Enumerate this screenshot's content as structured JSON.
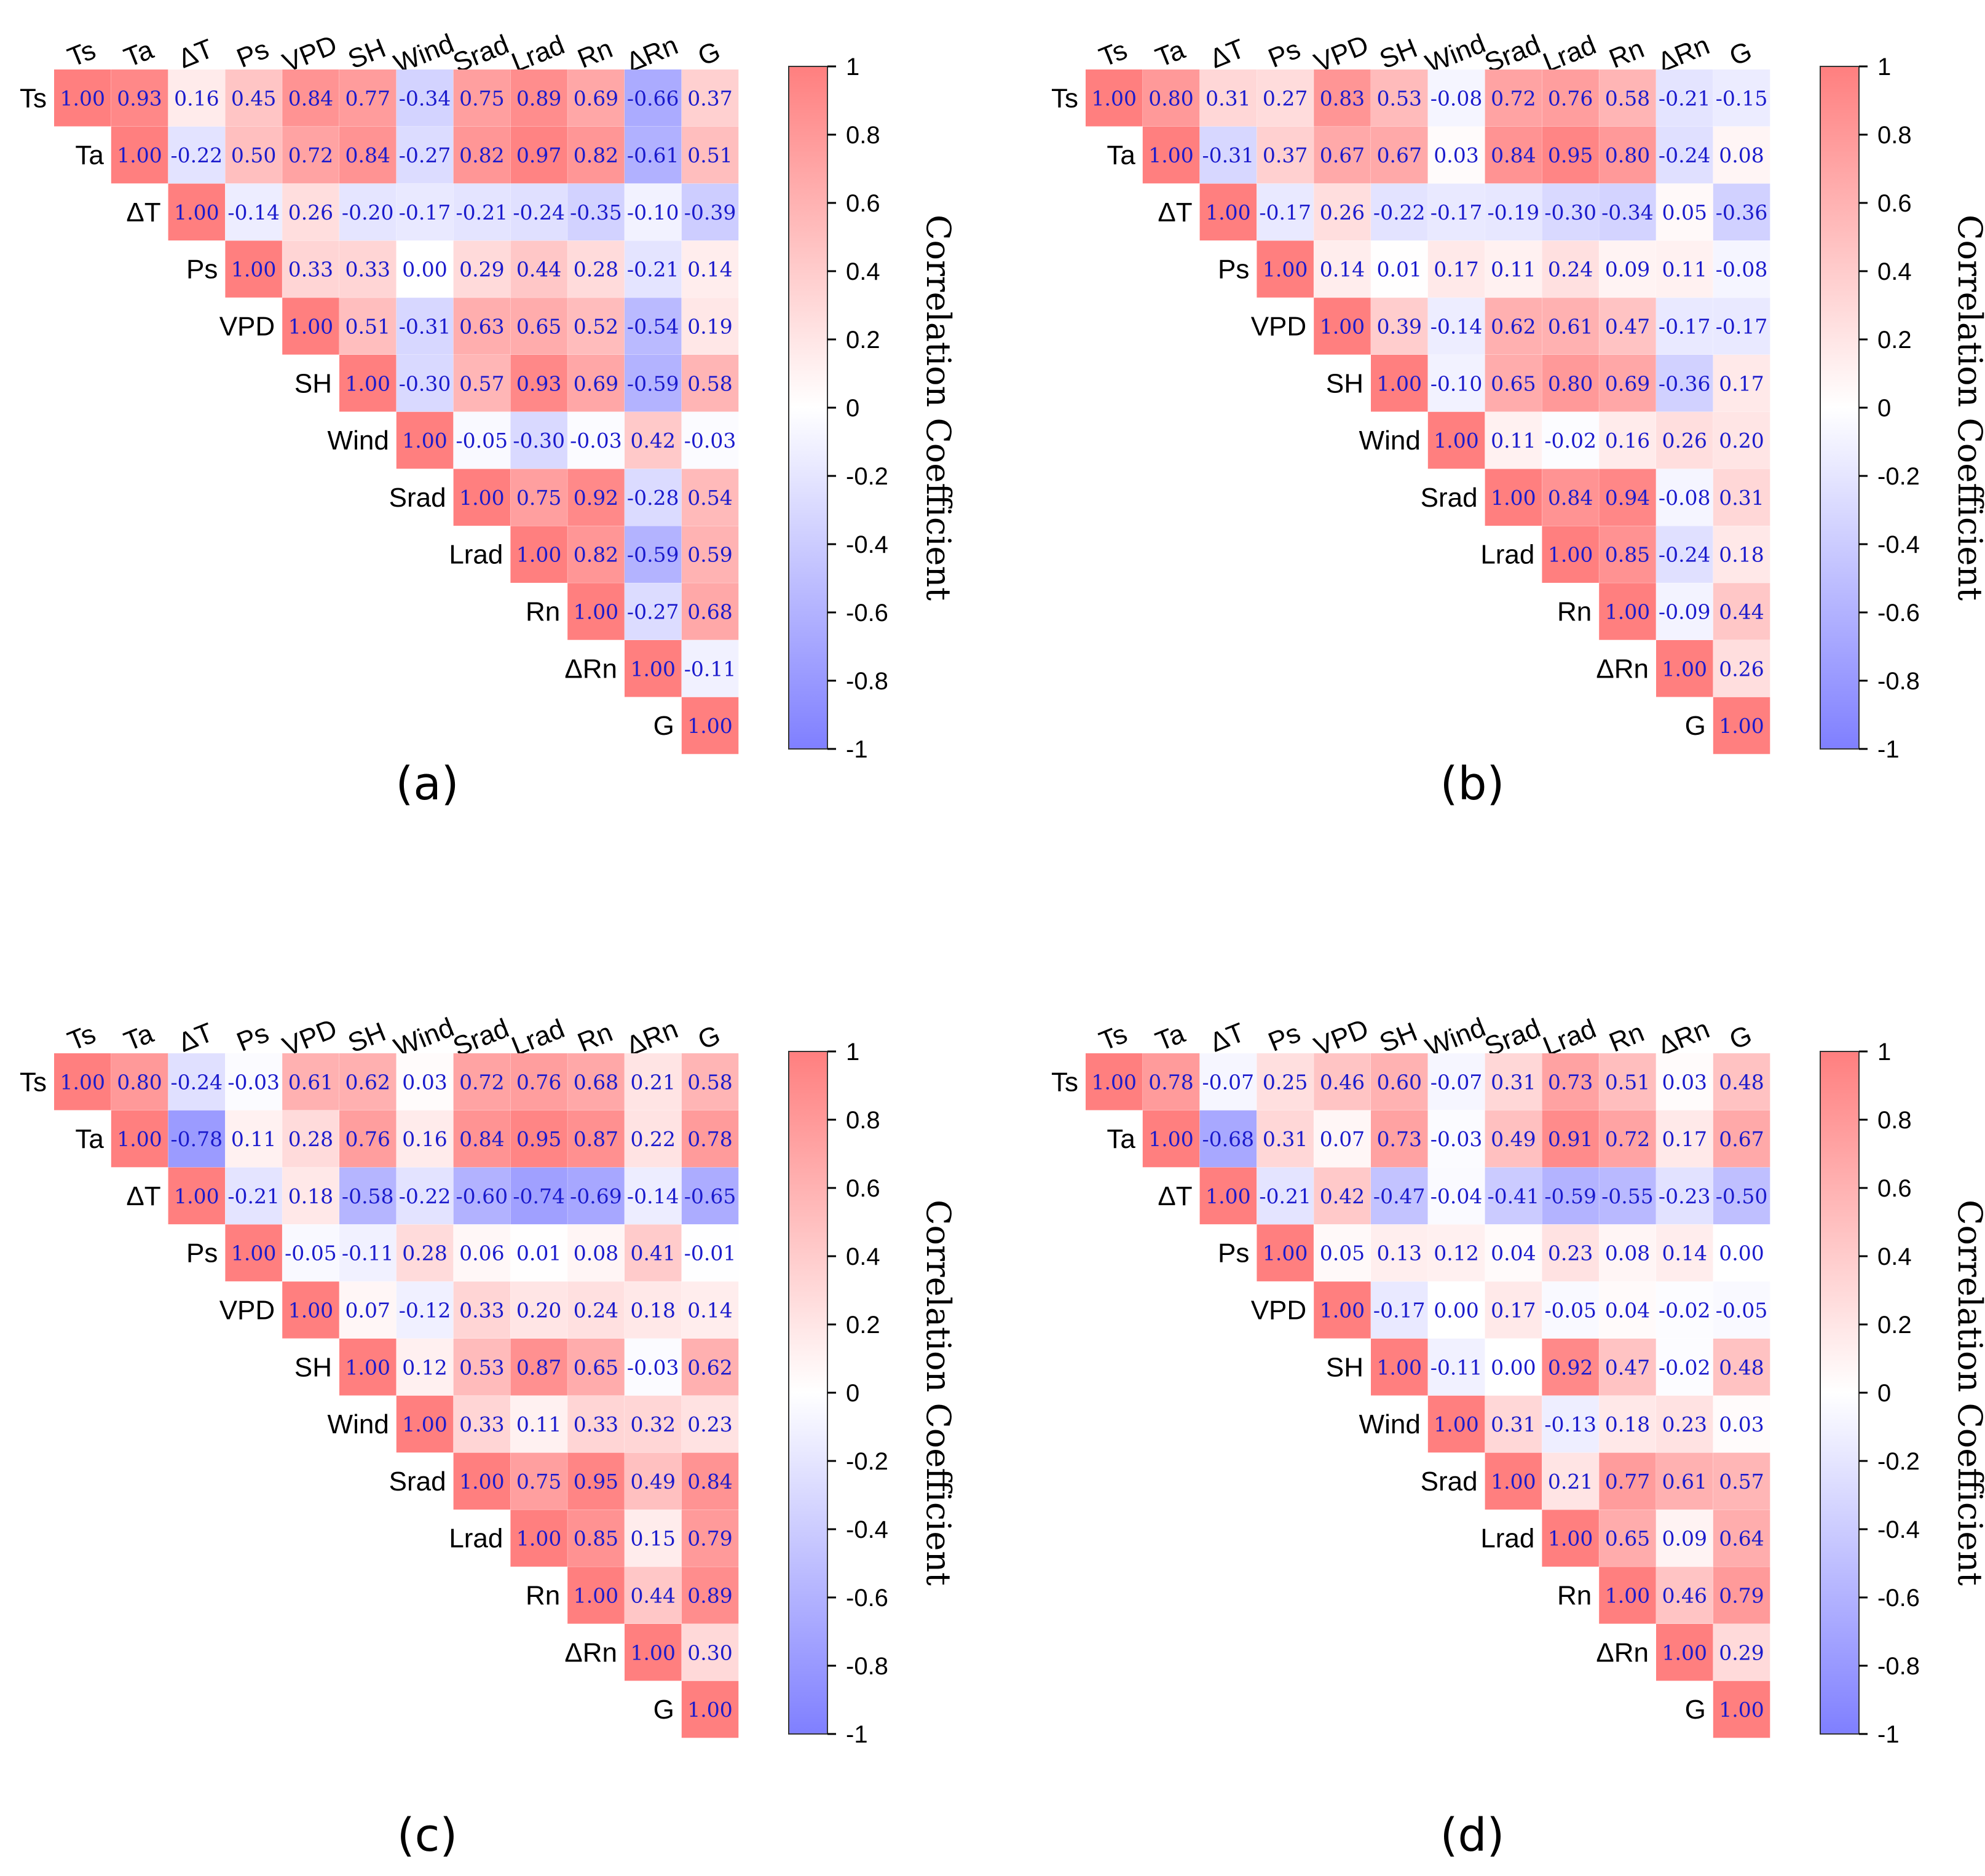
{
  "colors": {
    "low": "#7f7fff",
    "mid": "#ffffff",
    "high": "#ff7f7f",
    "cell_text": "#1a1acc",
    "diag_text": "#1a1acc"
  },
  "chart_data": [
    {
      "type": "heatmap",
      "caption": "(a)",
      "variables": [
        "Ts",
        "Ta",
        "ΔT",
        "Ps",
        "VPD",
        "SH",
        "Wind",
        "Srad",
        "Lrad",
        "Rn",
        "ΔRn",
        "G"
      ],
      "matrix_upper": [
        [
          1.0,
          0.93,
          0.16,
          0.45,
          0.84,
          0.77,
          -0.34,
          0.75,
          0.89,
          0.69,
          -0.66,
          0.37
        ],
        [
          1.0,
          -0.22,
          0.5,
          0.72,
          0.84,
          -0.27,
          0.82,
          0.97,
          0.82,
          -0.61,
          0.51
        ],
        [
          1.0,
          -0.14,
          0.26,
          -0.2,
          -0.17,
          -0.21,
          -0.24,
          -0.35,
          -0.1,
          -0.39
        ],
        [
          1.0,
          0.33,
          0.33,
          -0.0,
          0.29,
          0.44,
          0.28,
          -0.21,
          0.14
        ],
        [
          1.0,
          0.51,
          -0.31,
          0.63,
          0.65,
          0.52,
          -0.54,
          0.19
        ],
        [
          1.0,
          -0.3,
          0.57,
          0.93,
          0.69,
          -0.59,
          0.58
        ],
        [
          1.0,
          -0.05,
          -0.3,
          -0.03,
          0.42,
          -0.03
        ],
        [
          1.0,
          0.75,
          0.92,
          -0.28,
          0.54
        ],
        [
          1.0,
          0.82,
          -0.59,
          0.59
        ],
        [
          1.0,
          -0.27,
          0.68
        ],
        [
          1.0,
          -0.11
        ],
        [
          1.0
        ]
      ],
      "colorbar": {
        "label": "Correlation Coefficient",
        "range": [
          -1,
          1
        ],
        "ticks": [
          "1",
          "0.8",
          "0.6",
          "0.4",
          "0.2",
          "0",
          "-0.2",
          "-0.4",
          "-0.6",
          "-0.8",
          "-1"
        ]
      }
    },
    {
      "type": "heatmap",
      "caption": "(b)",
      "variables": [
        "Ts",
        "Ta",
        "ΔT",
        "Ps",
        "VPD",
        "SH",
        "Wind",
        "Srad",
        "Lrad",
        "Rn",
        "ΔRn",
        "G"
      ],
      "matrix_upper": [
        [
          1.0,
          0.8,
          0.31,
          0.27,
          0.83,
          0.53,
          -0.08,
          0.72,
          0.76,
          0.58,
          -0.21,
          -0.15
        ],
        [
          1.0,
          -0.31,
          0.37,
          0.67,
          0.67,
          0.03,
          0.84,
          0.95,
          0.8,
          -0.24,
          0.08
        ],
        [
          1.0,
          -0.17,
          0.26,
          -0.22,
          -0.17,
          -0.19,
          -0.3,
          -0.34,
          0.05,
          -0.36
        ],
        [
          1.0,
          0.14,
          0.01,
          0.17,
          0.11,
          0.24,
          0.09,
          0.11,
          -0.08
        ],
        [
          1.0,
          0.39,
          -0.14,
          0.62,
          0.61,
          0.47,
          -0.17,
          -0.17
        ],
        [
          1.0,
          -0.1,
          0.65,
          0.8,
          0.69,
          -0.36,
          0.17
        ],
        [
          1.0,
          0.11,
          -0.02,
          0.16,
          0.26,
          0.2
        ],
        [
          1.0,
          0.84,
          0.94,
          -0.08,
          0.31
        ],
        [
          1.0,
          0.85,
          -0.24,
          0.18
        ],
        [
          1.0,
          -0.09,
          0.44
        ],
        [
          1.0,
          0.26
        ],
        [
          1.0
        ]
      ],
      "colorbar": {
        "label": "Correlation Coefficient",
        "range": [
          -1,
          1
        ],
        "ticks": [
          "1",
          "0.8",
          "0.6",
          "0.4",
          "0.2",
          "0",
          "-0.2",
          "-0.4",
          "-0.6",
          "-0.8",
          "-1"
        ]
      }
    },
    {
      "type": "heatmap",
      "caption": "(c)",
      "variables": [
        "Ts",
        "Ta",
        "ΔT",
        "Ps",
        "VPD",
        "SH",
        "Wind",
        "Srad",
        "Lrad",
        "Rn",
        "ΔRn",
        "G"
      ],
      "matrix_upper": [
        [
          1.0,
          0.8,
          -0.24,
          -0.03,
          0.61,
          0.62,
          0.03,
          0.72,
          0.76,
          0.68,
          0.21,
          0.58
        ],
        [
          1.0,
          -0.78,
          0.11,
          0.28,
          0.76,
          0.16,
          0.84,
          0.95,
          0.87,
          0.22,
          0.78
        ],
        [
          1.0,
          -0.21,
          0.18,
          -0.58,
          -0.22,
          -0.6,
          -0.74,
          -0.69,
          -0.14,
          -0.65
        ],
        [
          1.0,
          -0.05,
          -0.11,
          0.28,
          0.06,
          0.01,
          0.08,
          0.41,
          -0.01
        ],
        [
          1.0,
          0.07,
          -0.12,
          0.33,
          0.2,
          0.24,
          0.18,
          0.14
        ],
        [
          1.0,
          0.12,
          0.53,
          0.87,
          0.65,
          -0.03,
          0.62
        ],
        [
          1.0,
          0.33,
          0.11,
          0.33,
          0.32,
          0.23
        ],
        [
          1.0,
          0.75,
          0.95,
          0.49,
          0.84
        ],
        [
          1.0,
          0.85,
          0.15,
          0.79
        ],
        [
          1.0,
          0.44,
          0.89
        ],
        [
          1.0,
          0.3
        ],
        [
          1.0
        ]
      ],
      "colorbar": {
        "label": "Correlation Coefficient",
        "range": [
          -1,
          1
        ],
        "ticks": [
          "1",
          "0.8",
          "0.6",
          "0.4",
          "0.2",
          "0",
          "-0.2",
          "-0.4",
          "-0.6",
          "-0.8",
          "-1"
        ]
      }
    },
    {
      "type": "heatmap",
      "caption": "(d)",
      "variables": [
        "Ts",
        "Ta",
        "ΔT",
        "Ps",
        "VPD",
        "SH",
        "Wind",
        "Srad",
        "Lrad",
        "Rn",
        "ΔRn",
        "G"
      ],
      "matrix_upper": [
        [
          1.0,
          0.78,
          -0.07,
          0.25,
          0.46,
          0.6,
          -0.07,
          0.31,
          0.73,
          0.51,
          0.03,
          0.48
        ],
        [
          1.0,
          -0.68,
          0.31,
          0.07,
          0.73,
          -0.03,
          0.49,
          0.91,
          0.72,
          0.17,
          0.67
        ],
        [
          1.0,
          -0.21,
          0.42,
          -0.47,
          -0.04,
          -0.41,
          -0.59,
          -0.55,
          -0.23,
          -0.5
        ],
        [
          1.0,
          0.05,
          0.13,
          0.12,
          0.04,
          0.23,
          0.08,
          0.14,
          0.0
        ],
        [
          1.0,
          -0.17,
          0.0,
          0.17,
          -0.05,
          0.04,
          -0.02,
          -0.05
        ],
        [
          1.0,
          -0.11,
          -0.0,
          0.92,
          0.47,
          -0.02,
          0.48
        ],
        [
          1.0,
          0.31,
          -0.13,
          0.18,
          0.23,
          0.03
        ],
        [
          1.0,
          0.21,
          0.77,
          0.61,
          0.57
        ],
        [
          1.0,
          0.65,
          0.09,
          0.64
        ],
        [
          1.0,
          0.46,
          0.79
        ],
        [
          1.0,
          0.29
        ],
        [
          1.0
        ]
      ],
      "colorbar": {
        "label": "Correlation Coefficient",
        "range": [
          -1,
          1
        ],
        "ticks": [
          "1",
          "0.8",
          "0.6",
          "0.4",
          "0.2",
          "0",
          "-0.2",
          "-0.4",
          "-0.6",
          "-0.8",
          "-1"
        ]
      }
    }
  ]
}
